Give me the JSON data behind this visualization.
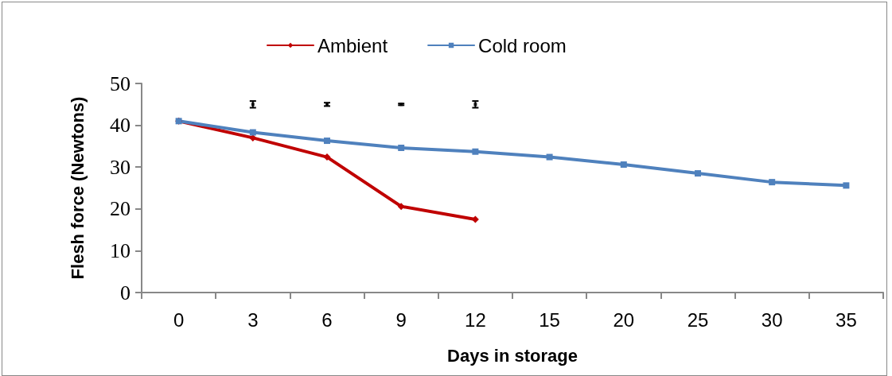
{
  "chart_data": {
    "type": "line",
    "xlabel": "Days in storage",
    "ylabel": "Flesh force (Newtons)",
    "categories": [
      "0",
      "3",
      "6",
      "9",
      "12",
      "15",
      "20",
      "25",
      "30",
      "35"
    ],
    "series": [
      {
        "name": "Ambient",
        "color": "#c00000",
        "marker": "diamond",
        "values": [
          41,
          37,
          32.4,
          20.6,
          17.5,
          null,
          null,
          null,
          null,
          null
        ]
      },
      {
        "name": "Cold room",
        "color": "#4f81bd",
        "marker": "square",
        "values": [
          41,
          38.3,
          36.3,
          34.6,
          33.7,
          32.4,
          30.6,
          28.5,
          26.4,
          25.6
        ]
      },
      {
        "type": "scatter",
        "color": "#000000",
        "marker": "square",
        "x": [
          "3",
          "6",
          "9",
          "12"
        ],
        "values": [
          45,
          45,
          45,
          45
        ],
        "errors": [
          0.8,
          0.4,
          0.2,
          0.8
        ]
      }
    ],
    "ylim": [
      0,
      50
    ],
    "yticks": [
      0,
      10,
      20,
      30,
      40,
      50
    ],
    "grid": false,
    "legend": "top",
    "line_style": "solid"
  }
}
